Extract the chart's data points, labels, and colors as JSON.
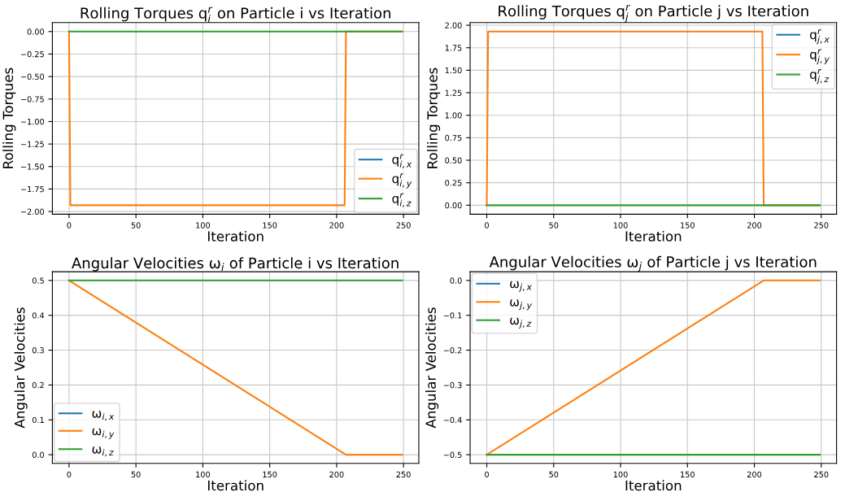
{
  "chart_data": [
    {
      "type": "line",
      "title": "Rolling Torques q$^{r}$$_{i}$ on Particle i vs Iteration",
      "xlabel": "Iteration",
      "ylabel": "Rolling Torques",
      "series": [
        {
          "name": "q$^{r}$$_{i,x}$",
          "color": "#1f77b4"
        },
        {
          "name": "q$^{r}$$_{i,y}$",
          "color": "#ff7f0e",
          "x": [
            0,
            1,
            206,
            207,
            249
          ],
          "values": [
            0,
            -1.93,
            -1.93,
            0,
            0
          ]
        },
        {
          "name": "q$^{r}$$_{i,z}$",
          "color": "#2ca02c",
          "x": [
            0,
            249
          ],
          "values": [
            0,
            0
          ]
        }
      ],
      "xlim": [
        -12.45,
        261.45
      ],
      "xticks": [
        0,
        50,
        100,
        150,
        200,
        250
      ],
      "ylim": [
        -2.03,
        0.1
      ],
      "yticks": [
        {
          "value": -2.0,
          "label": "−2.00"
        },
        {
          "value": -1.75,
          "label": "−1.75"
        },
        {
          "value": -1.5,
          "label": "−1.50"
        },
        {
          "value": -1.25,
          "label": "−1.25"
        },
        {
          "value": -1.0,
          "label": "−1.00"
        },
        {
          "value": -0.75,
          "label": "−0.75"
        },
        {
          "value": -0.5,
          "label": "−0.50"
        },
        {
          "value": -0.25,
          "label": "−0.25"
        },
        {
          "value": 0,
          "label": "0.00"
        }
      ],
      "grid": true,
      "legend": "bottom right"
    },
    {
      "type": "line",
      "title": "Rolling Torques q$^{r}$$_{j}$ on Particle j vs Iteration",
      "xlabel": "Iteration",
      "ylabel": "Rolling Torques",
      "series": [
        {
          "name": "q$^{r}$$_{j,x}$",
          "color": "#1f77b4"
        },
        {
          "name": "q$^{r}$$_{j,y}$",
          "color": "#ff7f0e",
          "x": [
            0,
            1,
            206,
            207,
            249
          ],
          "values": [
            0,
            1.93,
            1.93,
            0,
            0
          ]
        },
        {
          "name": "q$^{r}$$_{j,z}$",
          "color": "#2ca02c",
          "x": [
            0,
            249
          ],
          "values": [
            0,
            0
          ]
        }
      ],
      "xlim": [
        -12.45,
        261.45
      ],
      "xticks": [
        0,
        50,
        100,
        150,
        200,
        250
      ],
      "ylim": [
        -0.1,
        2.03
      ],
      "yticks": [
        {
          "value": 0,
          "label": "0.00"
        },
        {
          "value": 0.25,
          "label": "0.25"
        },
        {
          "value": 0.5,
          "label": "0.50"
        },
        {
          "value": 0.75,
          "label": "0.75"
        },
        {
          "value": 1.0,
          "label": "1.00"
        },
        {
          "value": 1.25,
          "label": "1.25"
        },
        {
          "value": 1.5,
          "label": "1.50"
        },
        {
          "value": 1.75,
          "label": "1.75"
        },
        {
          "value": 2.0,
          "label": "2.00"
        }
      ],
      "grid": true,
      "legend": "top right"
    },
    {
      "type": "line",
      "title": "Angular Velocities ω$_{i}$ of Particle i vs Iteration",
      "xlabel": "Iteration",
      "ylabel": "Angular Velocities",
      "series": [
        {
          "name": "ω$_{i,x}$",
          "color": "#1f77b4"
        },
        {
          "name": "ω$_{i,y}$",
          "color": "#ff7f0e",
          "x": [
            0,
            207,
            249
          ],
          "values": [
            0.5,
            0,
            0
          ]
        },
        {
          "name": "ω$_{i,z}$",
          "color": "#2ca02c",
          "x": [
            0,
            249
          ],
          "values": [
            0.5,
            0.5
          ]
        }
      ],
      "xlim": [
        -12.45,
        261.45
      ],
      "xticks": [
        0,
        50,
        100,
        150,
        200,
        250
      ],
      "ylim": [
        -0.025,
        0.525
      ],
      "yticks": [
        {
          "value": 0,
          "label": "0.0"
        },
        {
          "value": 0.1,
          "label": "0.1"
        },
        {
          "value": 0.2,
          "label": "0.2"
        },
        {
          "value": 0.3,
          "label": "0.3"
        },
        {
          "value": 0.4,
          "label": "0.4"
        },
        {
          "value": 0.5,
          "label": "0.5"
        }
      ],
      "grid": true,
      "legend": "bottom left"
    },
    {
      "type": "line",
      "title": "Angular Velocities ω$_{j}$ of Particle j vs Iteration",
      "xlabel": "Iteration",
      "ylabel": "Angular Velocities",
      "series": [
        {
          "name": "ω$_{j,x}$",
          "color": "#1f77b4"
        },
        {
          "name": "ω$_{j,y}$",
          "color": "#ff7f0e",
          "x": [
            0,
            207,
            249
          ],
          "values": [
            -0.5,
            0,
            0
          ]
        },
        {
          "name": "ω$_{j,z}$",
          "color": "#2ca02c",
          "x": [
            0,
            249
          ],
          "values": [
            -0.5,
            -0.5
          ]
        }
      ],
      "xlim": [
        -12.45,
        261.45
      ],
      "xticks": [
        0,
        50,
        100,
        150,
        200,
        250
      ],
      "ylim": [
        -0.525,
        0.025
      ],
      "yticks": [
        {
          "value": -0.5,
          "label": "−0.5"
        },
        {
          "value": -0.4,
          "label": "−0.4"
        },
        {
          "value": -0.3,
          "label": "−0.3"
        },
        {
          "value": -0.2,
          "label": "−0.2"
        },
        {
          "value": -0.1,
          "label": "−0.1"
        },
        {
          "value": 0,
          "label": "0.0"
        }
      ],
      "grid": true,
      "legend": "top left"
    }
  ]
}
